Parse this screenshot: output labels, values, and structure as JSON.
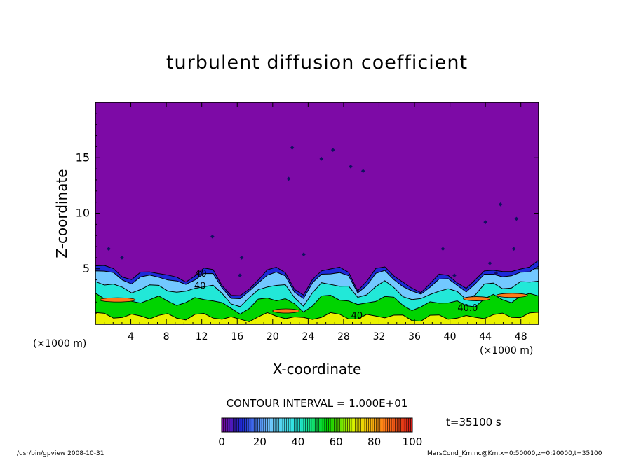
{
  "chart_data": {
    "type": "heatmap",
    "title": "turbulent diffusion coefficient",
    "xlabel": "X-coordinate",
    "ylabel": "Z-coordinate",
    "x_unit": "(×1000 m)",
    "xlim": [
      0,
      50
    ],
    "ylim": [
      0,
      20
    ],
    "x_ticks": [
      4,
      8,
      12,
      16,
      20,
      24,
      28,
      32,
      36,
      40,
      44,
      48
    ],
    "y_ticks": [
      5,
      10,
      15
    ],
    "contour_interval": "CONTOUR INTERVAL = 1.000E+01",
    "colorbar": {
      "min": 0,
      "max": 100,
      "ticks": [
        0,
        20,
        40,
        60,
        80,
        100
      ]
    },
    "contour_labels": [
      {
        "x": 11.8,
        "z": 3.2,
        "text": "40"
      },
      {
        "x": 29.5,
        "z": 0.5,
        "text": "40"
      },
      {
        "x": 42.0,
        "z": 1.2,
        "text": "40.0"
      },
      {
        "x": 11.9,
        "z": 4.3,
        "text": "40"
      }
    ],
    "boundary_layer_top_km": [
      5.5,
      5.2,
      4.8,
      4.4,
      4.2,
      4.5,
      4.6,
      4.8,
      4.5,
      4.0,
      3.8,
      4.6,
      5.0,
      4.7,
      3.6,
      2.8,
      2.4,
      3.0,
      4.2,
      5.0,
      4.9,
      4.6,
      3.4,
      2.6,
      3.8,
      4.9,
      5.2,
      5.0,
      4.5,
      3.2,
      4.0,
      4.8,
      5.1,
      4.6,
      3.8,
      3.0,
      2.9,
      3.9,
      4.4,
      4.2,
      3.9,
      3.4,
      3.8,
      4.7,
      5.1,
      4.8,
      4.5,
      5.0,
      5.4,
      5.7
    ]
  },
  "colors": {
    "background": "#7d0aa6",
    "deep_blue": "#1d2ad8",
    "light_blue": "#72c8ff",
    "cyan": "#22e8d8",
    "green": "#00d400",
    "yellow": "#eaf200",
    "orange": "#ff7a18"
  },
  "time_label": "t=35100 s",
  "footer": {
    "left": "/usr/bin/gpview   2008-10-31",
    "right": "MarsCond_Km.nc@Km,x=0:50000,z=0:20000,t=35100"
  }
}
